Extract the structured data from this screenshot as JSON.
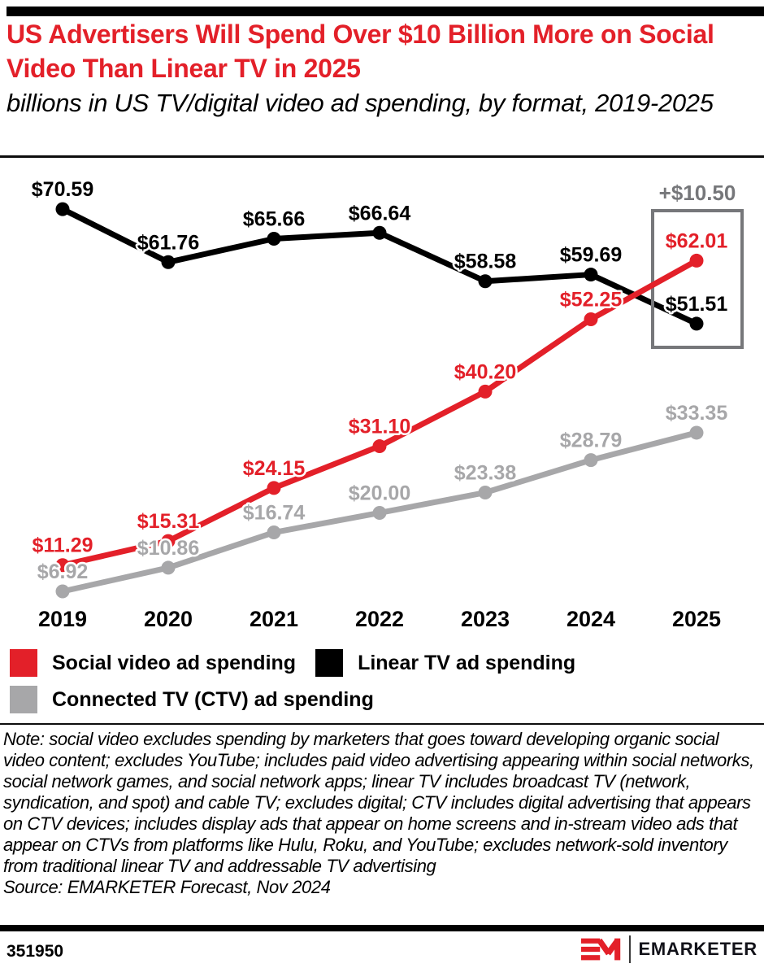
{
  "header": {
    "title": "US Advertisers Will Spend Over $10 Billion More on Social Video Than Linear TV in 2025",
    "subtitle": "billions in US TV/digital video ad spending, by format, 2019-2025"
  },
  "chart_data": {
    "type": "line",
    "x_labels": [
      "2019",
      "2020",
      "2021",
      "2022",
      "2023",
      "2024",
      "2025"
    ],
    "value_prefix": "$",
    "unit": "billions USD",
    "ylim": [
      0,
      75
    ],
    "grid": false,
    "series": [
      {
        "name": "Social video ad spending",
        "color": "#E32029",
        "values": [
          11.29,
          15.31,
          24.15,
          31.1,
          40.2,
          52.25,
          62.01
        ]
      },
      {
        "name": "Linear TV ad spending",
        "color": "#000000",
        "values": [
          70.59,
          61.76,
          65.66,
          66.64,
          58.58,
          59.69,
          51.51
        ]
      },
      {
        "name": "Connected TV (CTV) ad spending",
        "color": "#A7A7A9",
        "values": [
          6.92,
          10.86,
          16.74,
          20.0,
          23.38,
          28.79,
          33.35
        ]
      }
    ],
    "annotation": {
      "label": "+$10.50",
      "color": "#76777A",
      "highlight_year": "2025"
    }
  },
  "legend": {
    "items": [
      {
        "label": "Social video ad spending",
        "color": "#E32029"
      },
      {
        "label": "Linear TV ad spending",
        "color": "#000000"
      },
      {
        "label": "Connected TV (CTV) ad spending",
        "color": "#A7A7A9"
      }
    ]
  },
  "footnote": {
    "note": "Note: social video excludes spending by marketers that goes toward developing organic social video content; excludes YouTube; includes paid video advertising appearing within social networks, social network games, and social network apps; linear TV includes broadcast TV (network, syndication, and spot) and cable TV; excludes digital; CTV includes digital advertising that appears on CTV devices; includes display ads that appear on home screens and in-stream video ads that appear on CTVs from platforms like Hulu, Roku, and YouTube; excludes network-sold inventory from traditional linear TV and addressable TV advertising",
    "source": "Source: EMARKETER Forecast, Nov 2024"
  },
  "footer": {
    "chart_id": "351950",
    "brand": "EMARKETER"
  },
  "colors": {
    "accent_red": "#E32029",
    "line_gray": "#A7A7A9",
    "annotation_gray": "#76777A",
    "black": "#000000"
  }
}
